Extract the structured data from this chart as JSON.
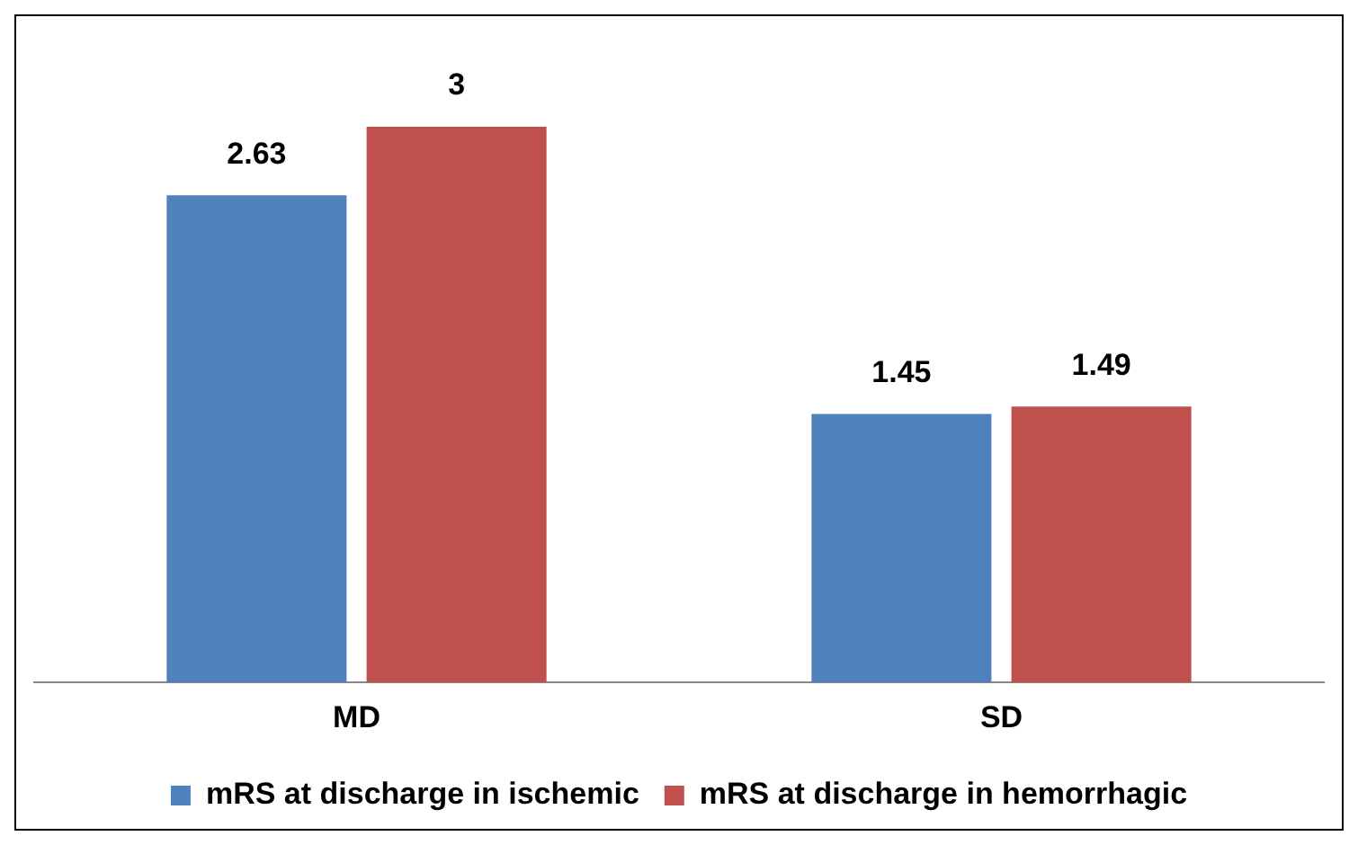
{
  "chart_data": {
    "type": "bar",
    "categories": [
      "MD",
      "SD"
    ],
    "series": [
      {
        "name": "mRS at discharge in ischemic",
        "color": "#4f81bd",
        "values": [
          2.63,
          1.45
        ]
      },
      {
        "name": "mRS at discharge in hemorrhagic",
        "color": "#c0504d",
        "values": [
          3,
          1.49
        ]
      }
    ],
    "data_labels": true,
    "legend": "bottom",
    "grid": false
  }
}
